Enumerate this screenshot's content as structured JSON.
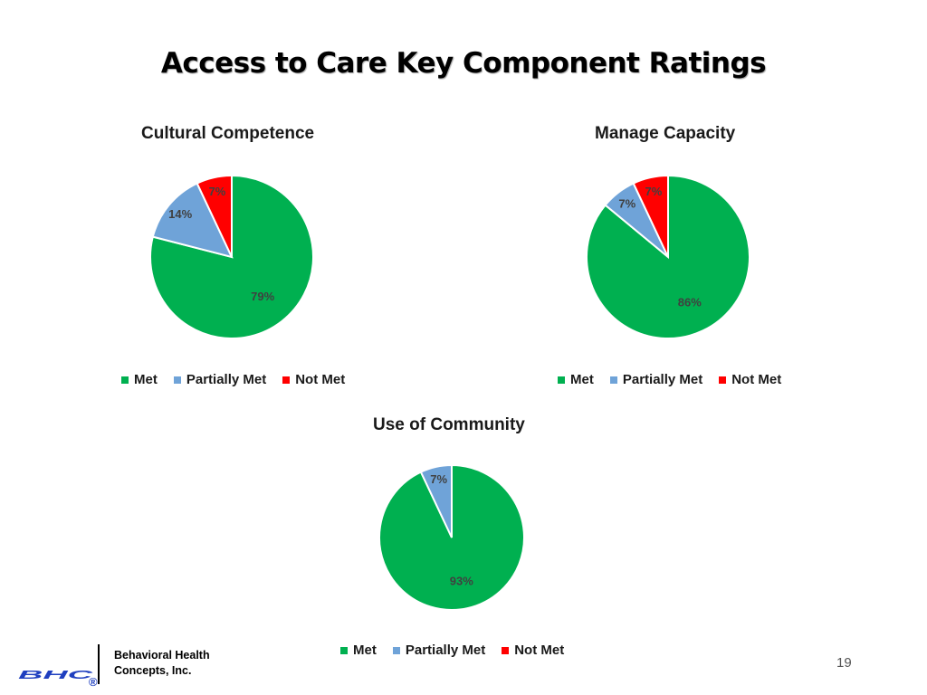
{
  "slide": {
    "title": "Access to Care Key Component Ratings",
    "page_number": "19"
  },
  "footer": {
    "logo_text": "BHC",
    "company_line1": "Behavioral Health",
    "company_line2": "Concepts, Inc."
  },
  "colors": {
    "met": "#00B050",
    "partially_met": "#6FA3D8",
    "not_met": "#FF0000",
    "label": "#404040",
    "logo": "#1F3FBF"
  },
  "legend_labels": [
    "Met",
    "Partially Met",
    "Not Met"
  ],
  "chart_data": [
    {
      "type": "pie",
      "title": "Cultural Competence",
      "categories": [
        "Met",
        "Partially Met",
        "Not Met"
      ],
      "values": [
        79,
        14,
        7
      ],
      "labels": [
        "79%",
        "14%",
        "7%"
      ],
      "legend": [
        "Met",
        "Partially Met",
        "Not Met"
      ]
    },
    {
      "type": "pie",
      "title": "Manage Capacity",
      "categories": [
        "Met",
        "Partially Met",
        "Not Met"
      ],
      "values": [
        86,
        7,
        7
      ],
      "labels": [
        "86%",
        "7%",
        "7%"
      ],
      "legend": [
        "Met",
        "Partially Met",
        "Not Met"
      ]
    },
    {
      "type": "pie",
      "title": "Use of Community",
      "categories": [
        "Met",
        "Partially Met",
        "Not Met"
      ],
      "values": [
        93,
        7,
        0
      ],
      "labels": [
        "93%",
        "7%",
        ""
      ],
      "legend": [
        "Met",
        "Partially Met",
        "Not Met"
      ]
    }
  ]
}
